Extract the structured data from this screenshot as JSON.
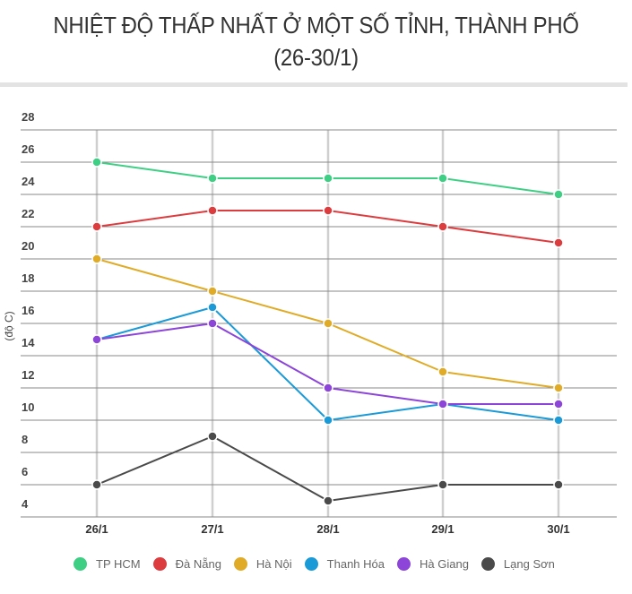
{
  "title": {
    "line1": "NHIỆT ĐỘ THẤP NHẤT Ở MỘT SỐ TỈNH, THÀNH PHỐ",
    "line2": "(26-30/1)"
  },
  "chart_data": {
    "type": "line",
    "title": "NHIỆT ĐỘ THẤP NHẤT Ở MỘT SỐ TỈNH, THÀNH PHỐ (26-30/1)",
    "xlabel": "",
    "ylabel": "(độ C)",
    "categories": [
      "26/1",
      "27/1",
      "28/1",
      "29/1",
      "30/1"
    ],
    "ylim": [
      4,
      28
    ],
    "yticks": [
      4,
      6,
      8,
      10,
      12,
      14,
      16,
      18,
      20,
      22,
      24,
      26,
      28
    ],
    "grid": true,
    "legend_position": "bottom",
    "series": [
      {
        "name": "TP HCM",
        "color": "#3ecf85",
        "values": [
          26,
          25,
          25,
          25,
          24
        ]
      },
      {
        "name": "Đà Nẵng",
        "color": "#dd3c3f",
        "values": [
          22,
          23,
          23,
          22,
          21
        ]
      },
      {
        "name": "Hà Nội",
        "color": "#e0ab26",
        "values": [
          20,
          18,
          16,
          13,
          12
        ]
      },
      {
        "name": "Thanh Hóa",
        "color": "#1a9ad7",
        "values": [
          15,
          17,
          10,
          11,
          10
        ]
      },
      {
        "name": "Hà Giang",
        "color": "#8c45d8",
        "values": [
          15,
          16,
          12,
          11,
          11
        ]
      },
      {
        "name": "Lạng Sơn",
        "color": "#4a4a4a",
        "values": [
          6,
          9,
          5,
          6,
          6
        ]
      }
    ]
  }
}
